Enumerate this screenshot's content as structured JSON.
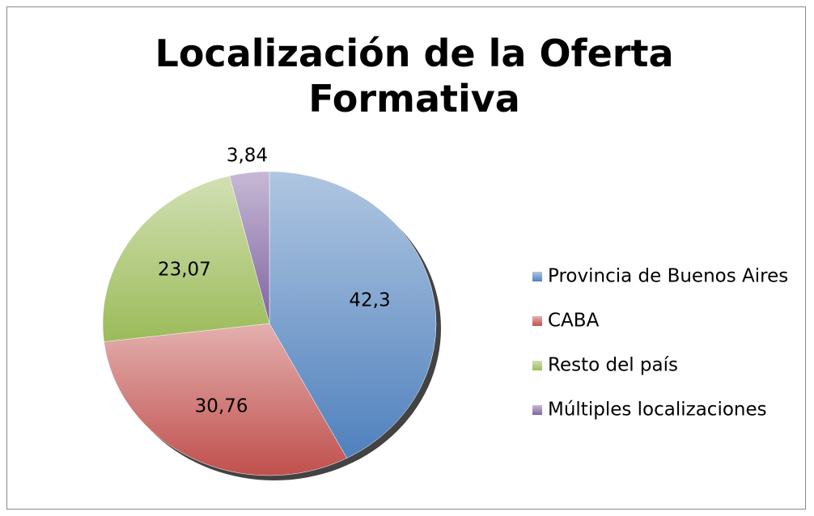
{
  "chart_data": {
    "type": "pie",
    "title": "Localización de la Oferta Formativa",
    "categories": [
      "Provincia de Buenos Aires",
      "CABA",
      "Resto del país",
      "Múltiples localizaciones"
    ],
    "values": [
      42.3,
      30.76,
      23.07,
      3.84
    ],
    "value_labels": [
      "42,3",
      "30,76",
      "23,07",
      "3,84"
    ],
    "colors": [
      "#4f81bd",
      "#c0504d",
      "#9bbb59",
      "#8064a2"
    ],
    "legend": "right"
  }
}
